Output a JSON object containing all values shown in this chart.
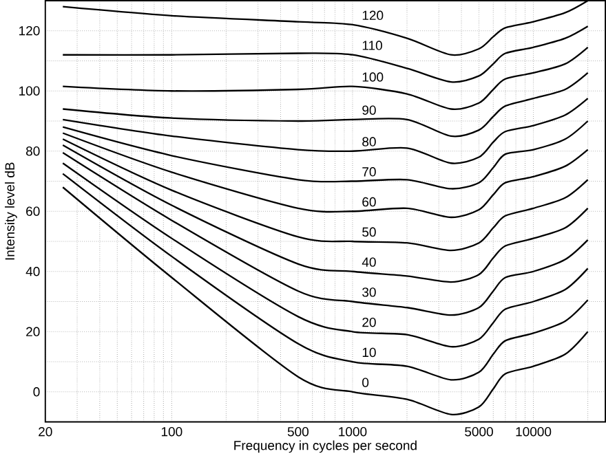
{
  "chart_data": {
    "type": "line",
    "xlabel": "Frequency in cycles per second",
    "ylabel": "Intensity level dB",
    "log": "x",
    "grid": true,
    "marker": "none",
    "line_style": "solid",
    "xlim": [
      20,
      25000
    ],
    "ylim": [
      -10,
      130
    ],
    "xticks": [
      20,
      {
        "value": 30,
        "label": null
      },
      {
        "value": 40,
        "label": null
      },
      {
        "value": 50,
        "label": null
      },
      {
        "value": 60,
        "label": null
      },
      {
        "value": 70,
        "label": null
      },
      {
        "value": 80,
        "label": null
      },
      {
        "value": 90,
        "label": null
      },
      100,
      {
        "value": 200,
        "label": null
      },
      {
        "value": 300,
        "label": null
      },
      {
        "value": 400,
        "label": null
      },
      500,
      {
        "value": 600,
        "label": null
      },
      {
        "value": 700,
        "label": null
      },
      {
        "value": 800,
        "label": null
      },
      {
        "value": 900,
        "label": null
      },
      1000,
      {
        "value": 2000,
        "label": null
      },
      {
        "value": 3000,
        "label": null
      },
      {
        "value": 4000,
        "label": null
      },
      5000,
      {
        "value": 6000,
        "label": null
      },
      {
        "value": 7000,
        "label": null
      },
      {
        "value": 8000,
        "label": null
      },
      {
        "value": 9000,
        "label": null
      },
      10000,
      {
        "value": 20000,
        "label": null
      }
    ],
    "yticks": [
      0,
      {
        "value": 10,
        "label": null
      },
      20,
      {
        "value": 30,
        "label": null
      },
      40,
      {
        "value": 50,
        "label": null
      },
      60,
      {
        "value": 70,
        "label": null
      },
      80,
      {
        "value": 90,
        "label": null
      },
      100,
      {
        "value": 110,
        "label": null
      },
      120
    ],
    "x": [
      25,
      100,
      500,
      1000,
      2000,
      3500,
      5000,
      6000,
      7000,
      10000,
      15000,
      20000
    ],
    "series": [
      {
        "name": "0",
        "color": "#000000",
        "values": [
          68,
          38,
          5,
          0,
          -2.5,
          -7.5,
          -5,
          1,
          6,
          8.5,
          12.5,
          20
        ]
      },
      {
        "name": "10",
        "color": "#000000",
        "values": [
          72.5,
          45,
          16,
          10,
          8.5,
          4,
          6.5,
          12.5,
          17,
          19.5,
          23.5,
          30.5
        ]
      },
      {
        "name": "20",
        "color": "#000000",
        "values": [
          76,
          51,
          25,
          20,
          19,
          15,
          17.5,
          23,
          27.5,
          30,
          34,
          41
        ]
      },
      {
        "name": "30",
        "color": "#000000",
        "values": [
          79.5,
          57,
          33.5,
          30,
          28,
          25.5,
          28,
          33.5,
          38,
          40,
          44,
          50.5
        ]
      },
      {
        "name": "40",
        "color": "#000000",
        "values": [
          82,
          62,
          42.5,
          40,
          38.5,
          36.5,
          39,
          44.5,
          48.5,
          51,
          54.5,
          61
        ]
      },
      {
        "name": "50",
        "color": "#000000",
        "values": [
          84,
          67,
          51.5,
          50,
          49.5,
          47,
          49.5,
          54.5,
          58.5,
          61,
          64.5,
          70.5
        ]
      },
      {
        "name": "60",
        "color": "#000000",
        "values": [
          86,
          73,
          61,
          60,
          61,
          58,
          60.5,
          65.5,
          69.5,
          71.5,
          75,
          80.5
        ]
      },
      {
        "name": "70",
        "color": "#000000",
        "values": [
          88,
          78.5,
          70.5,
          70,
          70.5,
          67.5,
          69.5,
          74.5,
          79,
          80.5,
          84,
          90
        ]
      },
      {
        "name": "80",
        "color": "#000000",
        "values": [
          90.5,
          85,
          80.5,
          80,
          81,
          76,
          78,
          83,
          86.5,
          88.5,
          92,
          97.5
        ]
      },
      {
        "name": "90",
        "color": "#000000",
        "values": [
          94,
          91,
          90,
          90.5,
          90.5,
          85,
          87,
          91.5,
          95,
          97.5,
          100.5,
          106
        ]
      },
      {
        "name": "100",
        "color": "#000000",
        "values": [
          101.5,
          100,
          100.5,
          101.5,
          99,
          94,
          96,
          100.5,
          104,
          106,
          109,
          114.5
        ]
      },
      {
        "name": "110",
        "color": "#000000",
        "values": [
          112,
          112,
          112.5,
          112,
          107.5,
          103,
          105,
          109,
          112.5,
          114.5,
          117.5,
          121.5
        ]
      },
      {
        "name": "120",
        "color": "#000000",
        "values": [
          128,
          125,
          123,
          122,
          117.5,
          112,
          114,
          118,
          121,
          123,
          126,
          130
        ]
      }
    ]
  }
}
